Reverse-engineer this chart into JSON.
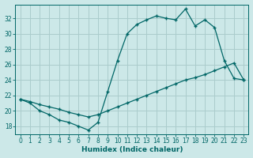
{
  "xlabel": "Humidex (Indice chaleur)",
  "bg_color": "#cce8e8",
  "line_color": "#006666",
  "grid_color": "#aacccc",
  "xlim": [
    -0.5,
    23.5
  ],
  "ylim": [
    17.0,
    33.8
  ],
  "xticks": [
    0,
    1,
    2,
    3,
    4,
    5,
    6,
    7,
    8,
    9,
    10,
    11,
    12,
    13,
    14,
    15,
    16,
    17,
    18,
    19,
    20,
    21,
    22,
    23
  ],
  "yticks": [
    18,
    20,
    22,
    24,
    26,
    28,
    30,
    32
  ],
  "line1_x": [
    0,
    1,
    2,
    3,
    4,
    5,
    6,
    7,
    8,
    9,
    10,
    11,
    12,
    13,
    14,
    15,
    16,
    17,
    18,
    19,
    20,
    21,
    22,
    23
  ],
  "line1_y": [
    21.5,
    21.0,
    20.0,
    19.5,
    18.8,
    18.5,
    18.0,
    17.5,
    18.5,
    22.5,
    26.5,
    30.0,
    31.2,
    31.8,
    32.3,
    32.0,
    31.8,
    33.2,
    31.0,
    31.8,
    30.8,
    26.5,
    24.2,
    24.0
  ],
  "line2_x": [
    0,
    1,
    2,
    3,
    4,
    5,
    6,
    7,
    8,
    9,
    10,
    11,
    12,
    13,
    14,
    15,
    16,
    17,
    18,
    19,
    20,
    21,
    22,
    23
  ],
  "line2_y": [
    21.5,
    21.2,
    20.8,
    20.5,
    20.2,
    19.8,
    19.5,
    19.2,
    19.5,
    20.0,
    20.5,
    21.0,
    21.5,
    22.0,
    22.5,
    23.0,
    23.5,
    24.0,
    24.3,
    24.7,
    25.2,
    25.7,
    26.2,
    24.0
  ]
}
